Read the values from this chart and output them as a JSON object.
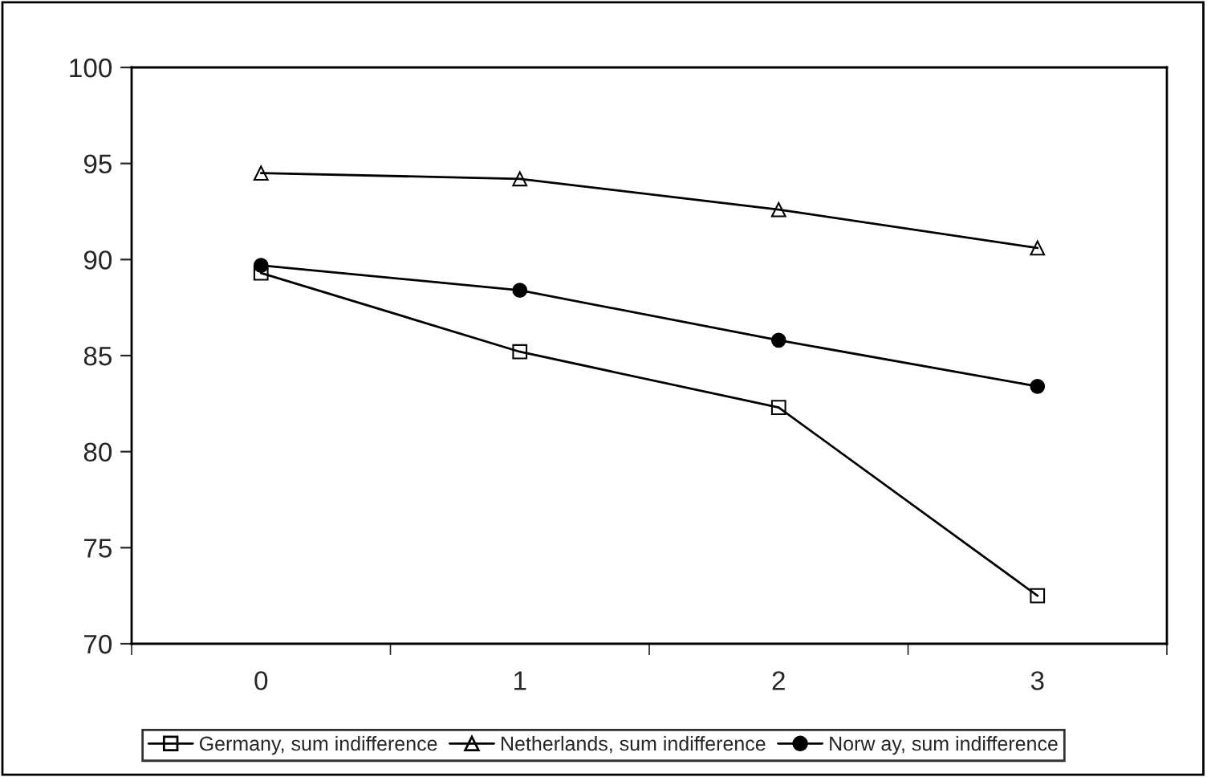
{
  "chart_data": {
    "type": "line",
    "categories": [
      "0",
      "1",
      "2",
      "3"
    ],
    "series": [
      {
        "name": "Germany, sum indifference",
        "color": "#000000",
        "marker": "square",
        "values": [
          89.3,
          85.2,
          82.3,
          72.5
        ]
      },
      {
        "name": "Netherlands, sum indifference",
        "color": "#000000",
        "marker": "triangle",
        "values": [
          94.5,
          94.2,
          92.6,
          90.6
        ]
      },
      {
        "name": "Norw ay, sum indifference",
        "color": "#000000",
        "marker": "circle",
        "values": [
          89.7,
          88.4,
          85.8,
          83.4
        ]
      }
    ],
    "ylim": [
      70,
      100
    ],
    "yticks": [
      70,
      75,
      80,
      85,
      90,
      95,
      100
    ],
    "grid": false,
    "legend": "bottom"
  }
}
